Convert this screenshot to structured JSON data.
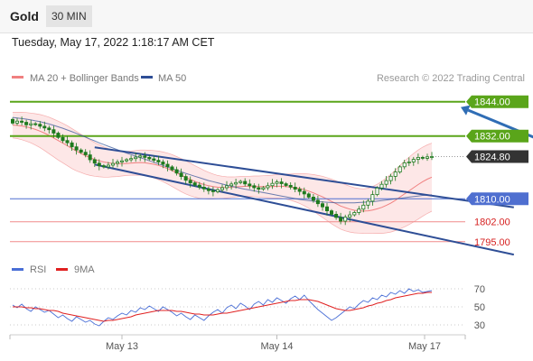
{
  "header": {
    "instrument": "Gold",
    "timeframe": "30 MIN",
    "timestamp": "Tuesday, May 17, 2022 1:18:17 AM CET"
  },
  "colors": {
    "bollinger": "#f08080",
    "bollinger_fill": "#fde3e3",
    "ma50": "#2e4e96",
    "resistance": "#5aa51a",
    "pivot": "#4f6fd0",
    "support": "#f08a8a",
    "support_label": "#d62020",
    "current": "#333333",
    "candle": "#1e7a1e",
    "arrow": "#2f6db5",
    "rsi": "#4a6fd6",
    "rsi_ma": "#e02020"
  },
  "chart_data": [
    {
      "type": "line",
      "title": "",
      "legend": [
        {
          "name": "MA 20 + Bollinger Bands",
          "color": "#f08080"
        },
        {
          "name": "MA 50",
          "color": "#2e4e96"
        }
      ],
      "credit": "Research © 2022 Trading Central",
      "x_ticks": [
        "May 13",
        "May 14",
        "May 17"
      ],
      "ylim": [
        1788,
        1848
      ],
      "levels": [
        {
          "value": 1844.0,
          "label": "1844.00",
          "kind": "resistance"
        },
        {
          "value": 1832.0,
          "label": "1832.00",
          "kind": "resistance"
        },
        {
          "value": 1824.8,
          "label": "1824.80",
          "kind": "current"
        },
        {
          "value": 1810.0,
          "label": "1810.00",
          "kind": "pivot"
        },
        {
          "value": 1802.0,
          "label": "1802.00",
          "kind": "support"
        },
        {
          "value": 1795.0,
          "label": "1795.00",
          "kind": "support"
        }
      ],
      "price_close": [
        1836.5,
        1837.2,
        1836.8,
        1835.9,
        1836.3,
        1836.1,
        1835.4,
        1834.8,
        1834.2,
        1833.0,
        1831.5,
        1830.4,
        1829.6,
        1828.2,
        1827.1,
        1826.3,
        1825.4,
        1823.7,
        1822.5,
        1821.6,
        1821.2,
        1821.8,
        1822.4,
        1822.9,
        1823.3,
        1823.7,
        1824.1,
        1824.6,
        1825.0,
        1824.5,
        1824.0,
        1823.5,
        1822.9,
        1822.1,
        1821.2,
        1820.2,
        1819.0,
        1817.8,
        1816.5,
        1815.6,
        1814.8,
        1814.1,
        1813.5,
        1812.9,
        1812.5,
        1813.2,
        1813.9,
        1814.6,
        1815.2,
        1815.7,
        1816.1,
        1815.2,
        1814.6,
        1813.9,
        1813.4,
        1813.9,
        1814.6,
        1815.4,
        1815.9,
        1815.3,
        1814.7,
        1814.1,
        1813.4,
        1812.6,
        1811.7,
        1810.6,
        1809.5,
        1808.3,
        1807.2,
        1805.8,
        1804.6,
        1803.5,
        1802.2,
        1803.6,
        1804.4,
        1805.2,
        1806.4,
        1807.8,
        1809.2,
        1811.5,
        1813.8,
        1815.1,
        1816.4,
        1817.9,
        1819.4,
        1821.2,
        1822.6,
        1822.9,
        1823.8,
        1824.5,
        1824.2,
        1824.7,
        1824.8
      ],
      "price_open": [
        1837.8,
        1836.5,
        1837.2,
        1836.8,
        1835.9,
        1836.3,
        1836.1,
        1835.4,
        1834.8,
        1834.2,
        1833.0,
        1831.5,
        1830.4,
        1829.6,
        1828.2,
        1827.1,
        1826.3,
        1825.4,
        1823.7,
        1822.5,
        1821.6,
        1821.2,
        1821.8,
        1822.4,
        1822.9,
        1823.3,
        1823.7,
        1824.1,
        1824.6,
        1825.0,
        1824.5,
        1824.0,
        1823.5,
        1822.9,
        1822.1,
        1821.2,
        1820.2,
        1819.0,
        1817.8,
        1816.5,
        1815.6,
        1814.8,
        1814.1,
        1813.5,
        1812.9,
        1812.5,
        1813.2,
        1813.9,
        1814.6,
        1815.2,
        1815.7,
        1816.1,
        1815.2,
        1814.6,
        1813.9,
        1813.4,
        1813.9,
        1814.6,
        1815.4,
        1815.9,
        1815.3,
        1814.7,
        1814.1,
        1813.4,
        1812.6,
        1811.7,
        1810.6,
        1809.5,
        1808.3,
        1807.2,
        1805.8,
        1804.6,
        1803.5,
        1802.2,
        1803.6,
        1804.4,
        1805.2,
        1806.4,
        1807.8,
        1809.2,
        1811.5,
        1813.8,
        1815.1,
        1816.4,
        1817.9,
        1819.4,
        1821.2,
        1822.6,
        1822.9,
        1823.8,
        1824.5,
        1824.2,
        1824.7
      ],
      "bb_mid": [
        1835.8,
        1835.7,
        1835.5,
        1835.2,
        1834.8,
        1834.3,
        1833.7,
        1833.0,
        1832.2,
        1831.3,
        1830.4,
        1829.5,
        1828.6,
        1827.6,
        1826.7,
        1825.9,
        1825.1,
        1824.4,
        1823.8,
        1823.3,
        1822.9,
        1822.6,
        1822.4,
        1822.3,
        1822.3,
        1822.4,
        1822.5,
        1822.6,
        1822.7,
        1822.6,
        1822.4,
        1822.1,
        1821.7,
        1821.2,
        1820.6,
        1819.9,
        1819.1,
        1818.3,
        1817.5,
        1816.8,
        1816.1,
        1815.5,
        1815.0,
        1814.6,
        1814.3,
        1814.1,
        1814.0,
        1814.0,
        1814.1,
        1814.2,
        1814.3,
        1814.4,
        1814.4,
        1814.4,
        1814.3,
        1814.3,
        1814.3,
        1814.3,
        1814.4,
        1814.4,
        1814.3,
        1814.1,
        1813.9,
        1813.6,
        1813.2,
        1812.7,
        1812.1,
        1811.4,
        1810.7,
        1809.9,
        1809.1,
        1808.3,
        1807.5,
        1806.9,
        1806.4,
        1806.0,
        1805.8,
        1805.7,
        1805.8,
        1806.1,
        1806.5,
        1807.0,
        1807.7,
        1808.5,
        1809.5,
        1810.6,
        1811.7,
        1812.8,
        1813.9,
        1815.0,
        1816.0,
        1816.9,
        1817.6
      ],
      "bb_width": [
        4.5,
        4.6,
        4.8,
        5.0,
        5.2,
        5.5,
        5.8,
        6.1,
        6.4,
        6.6,
        6.8,
        6.9,
        7.0,
        7.0,
        6.9,
        6.7,
        6.5,
        6.2,
        5.9,
        5.6,
        5.3,
        5.0,
        4.7,
        4.5,
        4.3,
        4.2,
        4.2,
        4.3,
        4.4,
        4.5,
        4.6,
        4.8,
        5.0,
        5.2,
        5.4,
        5.6,
        5.7,
        5.8,
        5.8,
        5.7,
        5.5,
        5.3,
        5.0,
        4.7,
        4.4,
        4.1,
        3.9,
        3.7,
        3.6,
        3.5,
        3.5,
        3.5,
        3.5,
        3.6,
        3.7,
        3.8,
        3.9,
        4.0,
        4.1,
        4.2,
        4.4,
        4.6,
        4.9,
        5.2,
        5.6,
        6.0,
        6.4,
        6.8,
        7.2,
        7.5,
        7.8,
        8.0,
        8.1,
        8.1,
        8.0,
        7.9,
        7.8,
        7.8,
        7.9,
        8.2,
        8.6,
        9.1,
        9.6,
        10.1,
        10.6,
        11.1,
        11.5,
        11.8,
        12.0,
        12.1,
        12.1,
        12.0,
        11.9
      ],
      "ma50": [
        1838.5,
        1838.3,
        1838.1,
        1837.9,
        1837.6,
        1837.3,
        1837.0,
        1836.6,
        1836.2,
        1835.7,
        1835.2,
        1834.7,
        1834.1,
        1833.5,
        1832.9,
        1832.2,
        1831.6,
        1830.9,
        1830.3,
        1829.6,
        1829.0,
        1828.4,
        1827.8,
        1827.2,
        1826.6,
        1826.0,
        1825.5,
        1824.9,
        1824.4,
        1823.9,
        1823.3,
        1822.8,
        1822.2,
        1821.7,
        1821.1,
        1820.6,
        1820.0,
        1819.5,
        1818.9,
        1818.4,
        1817.9,
        1817.4,
        1816.9,
        1816.4,
        1816.0,
        1815.6,
        1815.2,
        1814.8,
        1814.4,
        1814.1,
        1813.7,
        1813.4,
        1813.1,
        1812.8,
        1812.5,
        1812.2,
        1811.9,
        1811.6,
        1811.3,
        1811.0,
        1810.7,
        1810.4,
        1810.1,
        1809.8,
        1809.6,
        1809.4,
        1809.2,
        1809.0,
        1808.9,
        1808.8,
        1808.7,
        1808.6,
        1808.6,
        1808.6,
        1808.6,
        1808.6,
        1808.7,
        1808.8,
        1808.9,
        1809.0,
        1809.2,
        1809.4,
        1809.6,
        1809.8,
        1810.0,
        1810.2,
        1810.4,
        1810.6,
        1810.8,
        1811.0,
        1811.2,
        1811.3,
        1811.4
      ],
      "trendlines": [
        {
          "from": [
            18,
            1828.0
          ],
          "to": [
            110,
            1807.0
          ]
        },
        {
          "from": [
            18,
            1822.0
          ],
          "to": [
            110,
            1790.5
          ]
        }
      ],
      "target_arrow": {
        "from": [
          124,
          1825.2
        ],
        "to": [
          135,
          1844.0
        ]
      }
    },
    {
      "type": "line",
      "title": "",
      "legend": [
        {
          "name": "RSI",
          "color": "#4a6fd6"
        },
        {
          "name": "9MA",
          "color": "#e02020"
        }
      ],
      "ylim": [
        20,
        80
      ],
      "y_ticks": [
        30,
        50,
        70
      ],
      "rsi": [
        52,
        49,
        53,
        48,
        45,
        50,
        47,
        44,
        46,
        42,
        38,
        41,
        37,
        34,
        39,
        36,
        33,
        35,
        31,
        29,
        34,
        38,
        36,
        40,
        43,
        41,
        46,
        44,
        49,
        47,
        51,
        48,
        45,
        50,
        47,
        44,
        40,
        43,
        39,
        36,
        41,
        38,
        35,
        40,
        44,
        47,
        43,
        49,
        52,
        48,
        54,
        51,
        47,
        53,
        56,
        52,
        58,
        55,
        60,
        57,
        54,
        59,
        62,
        58,
        63,
        57,
        52,
        47,
        43,
        39,
        35,
        38,
        42,
        46,
        50,
        48,
        53,
        57,
        55,
        60,
        58,
        63,
        61,
        66,
        64,
        68,
        65,
        70,
        67,
        69,
        66,
        67,
        68
      ],
      "rsi_ma": [
        50,
        50,
        50,
        49,
        49,
        48,
        48,
        47,
        46,
        46,
        45,
        43,
        42,
        41,
        40,
        39,
        38,
        37,
        36,
        35,
        34,
        35,
        35,
        36,
        37,
        38,
        39,
        41,
        42,
        43,
        44,
        45,
        46,
        46,
        46,
        46,
        45,
        45,
        44,
        43,
        42,
        42,
        41,
        41,
        41,
        42,
        43,
        43,
        44,
        45,
        46,
        47,
        48,
        49,
        50,
        51,
        52,
        53,
        54,
        55,
        56,
        57,
        57,
        58,
        58,
        58,
        57,
        56,
        54,
        52,
        50,
        48,
        47,
        46,
        46,
        47,
        48,
        49,
        51,
        52,
        54,
        55,
        57,
        58,
        60,
        61,
        62,
        63,
        64,
        65,
        65,
        66,
        66
      ]
    }
  ]
}
